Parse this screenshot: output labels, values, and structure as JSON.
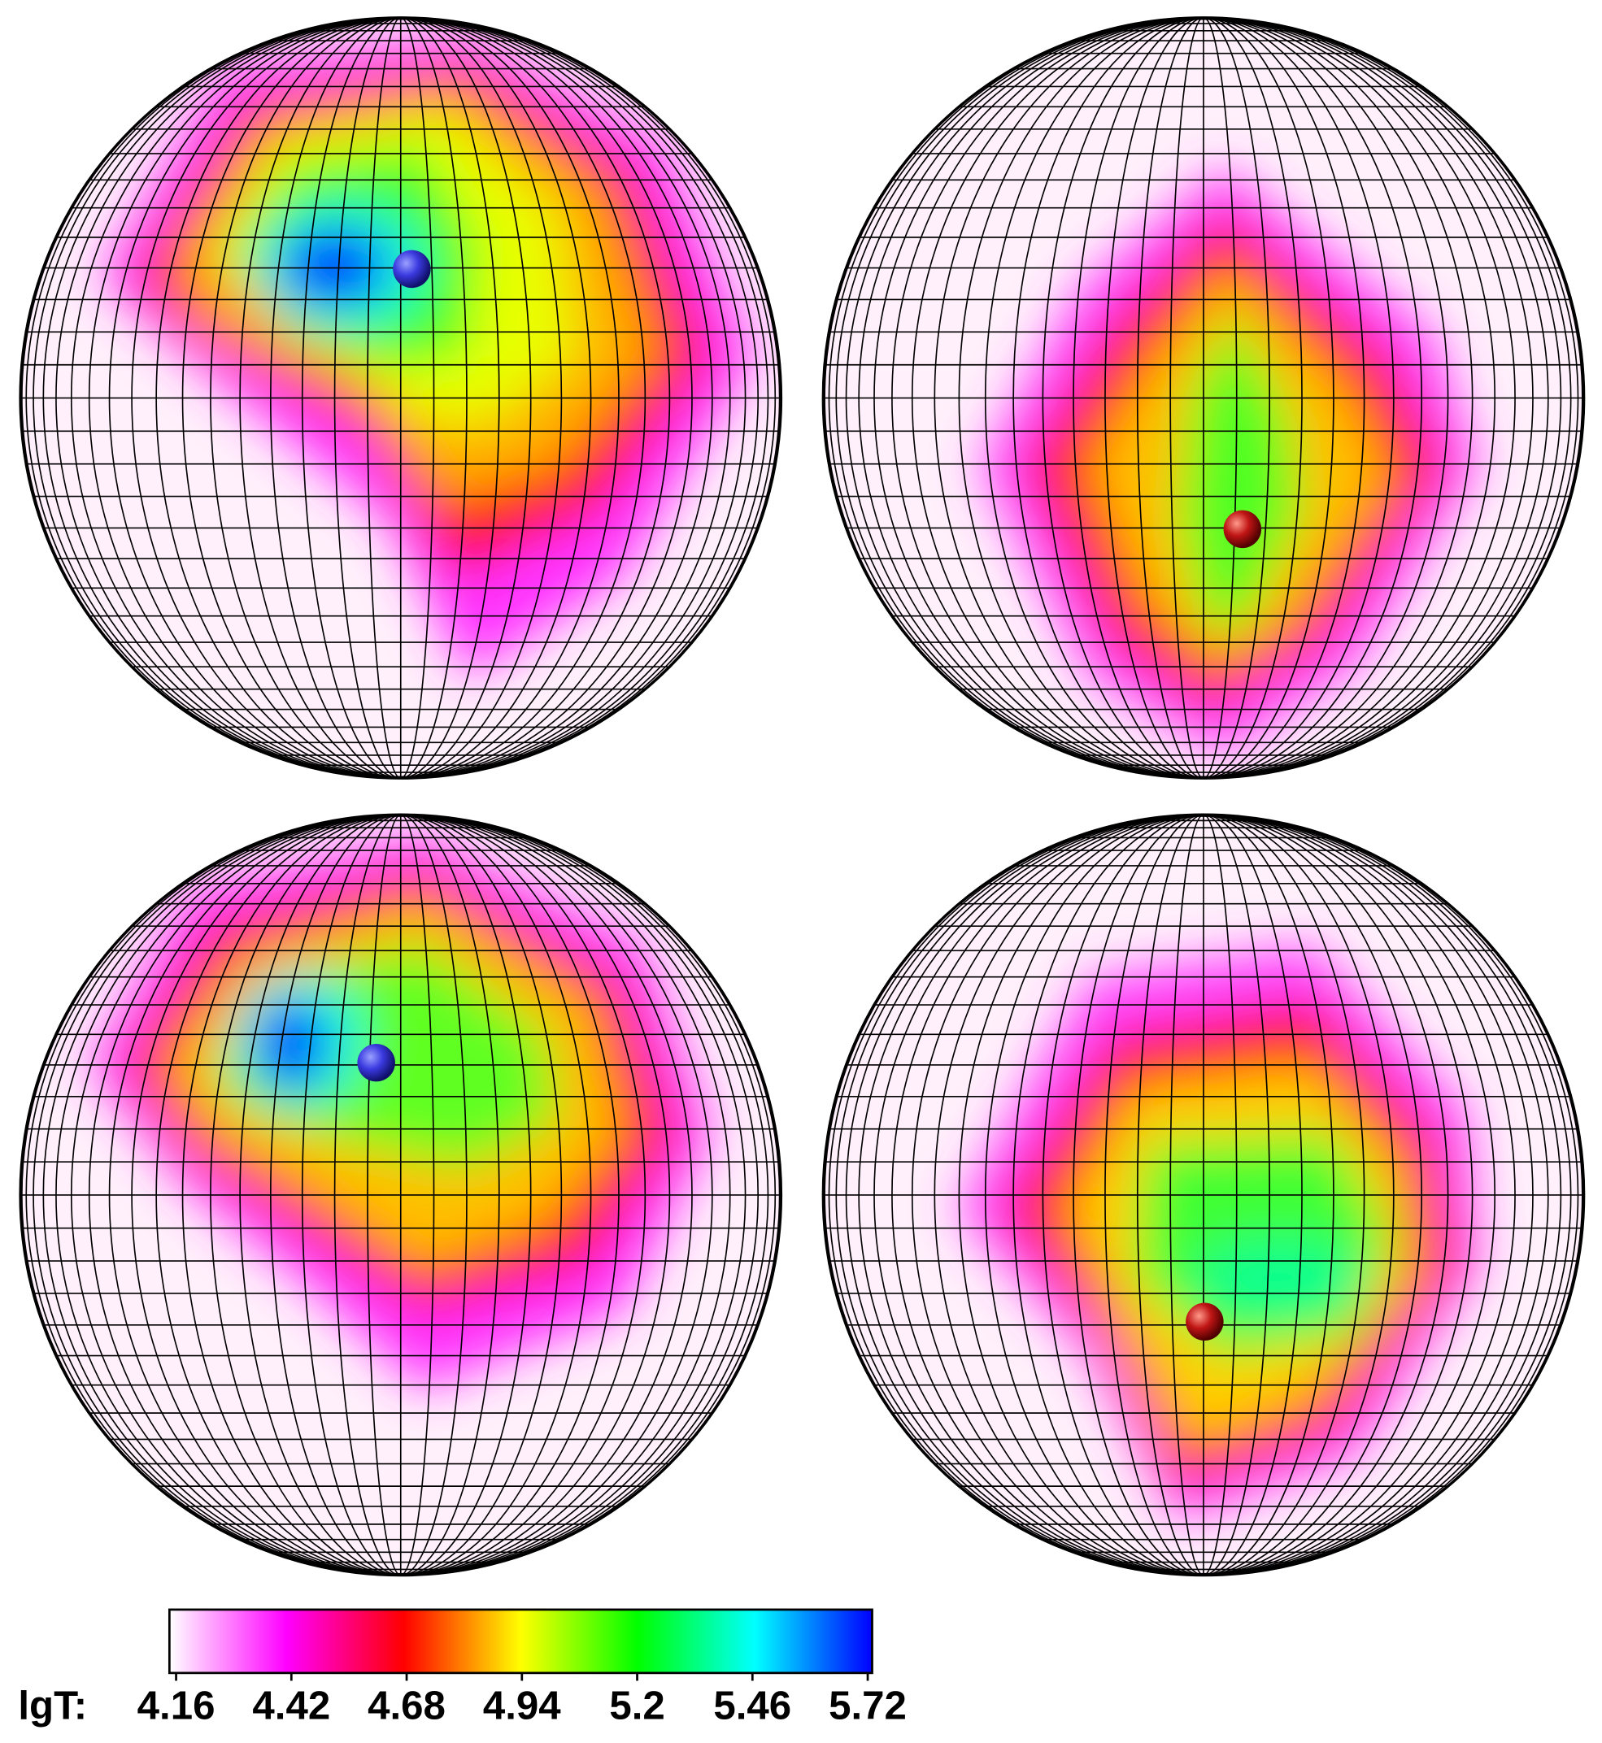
{
  "chart_data": {
    "type": "colorbar",
    "label": "lgT:",
    "xlim": [
      4.16,
      5.72
    ],
    "xticks": [
      4.16,
      4.42,
      4.68,
      4.94,
      5.2,
      5.46,
      5.72
    ],
    "colormap": [
      "#ffffff",
      "#ff00ff",
      "#ff0000",
      "#ffff00",
      "#00ff00",
      "#00ffff",
      "#0000ff"
    ]
  }
}
